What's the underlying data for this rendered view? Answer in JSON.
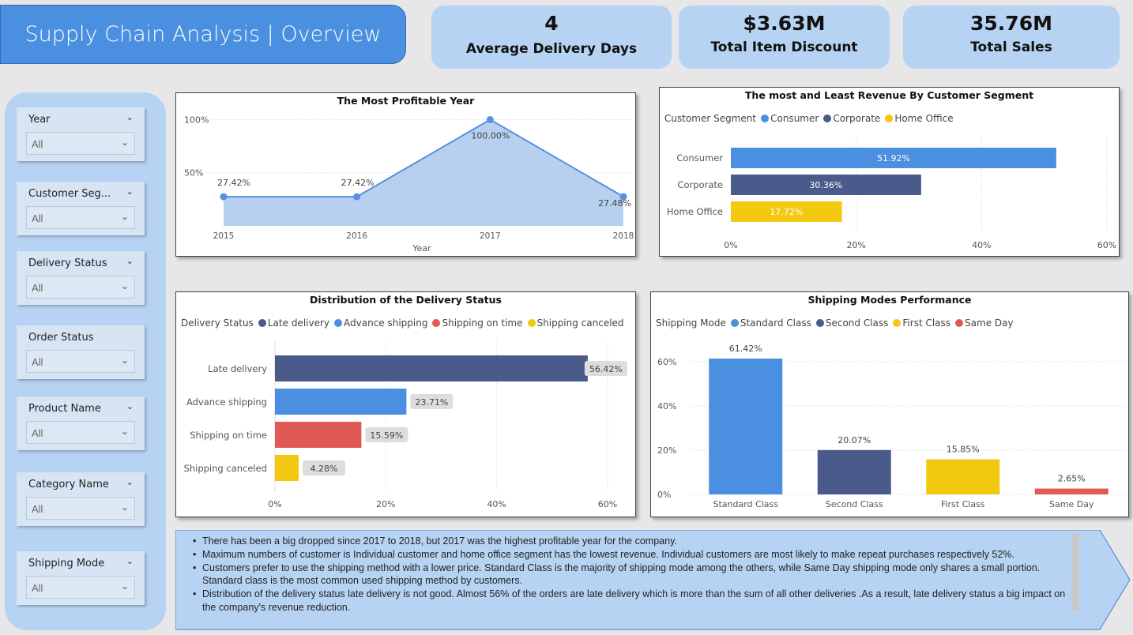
{
  "header": {
    "title": "Supply Chain Analysis | Overview"
  },
  "kpis": [
    {
      "value": "4",
      "label": "Average Delivery Days"
    },
    {
      "value": "$3.63M",
      "label": "Total Item Discount"
    },
    {
      "value": "35.76M",
      "label": "Total Sales"
    }
  ],
  "filters": [
    {
      "label": "Year",
      "value": "All"
    },
    {
      "label": "Customer Seg...",
      "value": "All"
    },
    {
      "label": "Delivery Status",
      "value": "All"
    },
    {
      "label": "Order Status",
      "value": "All"
    },
    {
      "label": "Product Name",
      "value": "All"
    },
    {
      "label": "Category Name",
      "value": "All"
    },
    {
      "label": "Shipping Mode",
      "value": "All"
    }
  ],
  "chart_data": [
    {
      "type": "area",
      "title": "The Most Profitable  Year",
      "xlabel": "Year",
      "ylabel": "",
      "x": [
        "2015",
        "2016",
        "2017",
        "2018"
      ],
      "values": [
        27.42,
        27.42,
        100.0,
        27.48
      ],
      "data_labels": [
        "27.42%",
        "27.42%",
        "100.00%",
        "27.48%"
      ],
      "yticks": [
        "50%",
        "100%"
      ],
      "ylim": [
        0,
        110
      ],
      "color": "#5b8fe0"
    },
    {
      "type": "bar",
      "orientation": "horizontal",
      "title": "The most and Least Revenue By Customer Segment",
      "legend_title": "Customer Segment",
      "categories": [
        "Consumer",
        "Corporate",
        "Home Office"
      ],
      "values": [
        51.92,
        30.36,
        17.72
      ],
      "data_labels": [
        "51.92%",
        "30.36%",
        "17.72%"
      ],
      "colors": [
        "#4a8fe0",
        "#4a5a8a",
        "#f2c811"
      ],
      "xticks": [
        "0%",
        "20%",
        "40%",
        "60%"
      ],
      "xlim": [
        0,
        60
      ]
    },
    {
      "type": "bar",
      "orientation": "horizontal",
      "title": "Distribution of the Delivery Status",
      "legend_title": "Delivery Status",
      "categories": [
        "Late delivery",
        "Advance shipping",
        "Shipping on time",
        "Shipping canceled"
      ],
      "values": [
        56.42,
        23.71,
        15.59,
        4.28
      ],
      "data_labels": [
        "56.42%",
        "23.71%",
        "15.59%",
        "4.28%"
      ],
      "colors": [
        "#4a5a8a",
        "#4a8fe0",
        "#e05a55",
        "#f2c811"
      ],
      "xticks": [
        "0%",
        "20%",
        "40%",
        "60%"
      ],
      "xlim": [
        0,
        60
      ]
    },
    {
      "type": "bar",
      "orientation": "vertical",
      "title": "Shipping Modes Performance",
      "legend_title": "Shipping Mode",
      "categories": [
        "Standard Class",
        "Second Class",
        "First Class",
        "Same Day"
      ],
      "values": [
        61.42,
        20.07,
        15.85,
        2.65
      ],
      "data_labels": [
        "61.42%",
        "20.07%",
        "15.85%",
        "2.65%"
      ],
      "colors": [
        "#4a8fe0",
        "#4a5a8a",
        "#f2c811",
        "#e05a55"
      ],
      "yticks": [
        "0%",
        "20%",
        "40%",
        "60%"
      ],
      "ylim": [
        0,
        60
      ]
    }
  ],
  "insights": [
    "There has been a big dropped since 2017 to 2018, but 2017 was the highest profitable year for the company.",
    "Maximum numbers of customer is Individual customer and home office segment has the lowest revenue. Individual customers are most likely to make repeat purchases respectively 52%.",
    "Customers prefer to use the shipping method with a lower price. Standard Class is the majority of shipping mode among the others, while Same Day shipping mode only shares a small portion.  Standard class is the most common used shipping method by customers.",
    "Distribution of the delivery status  late delivery is not good. Almost  56% of the orders are late delivery which is more than the sum of all other deliveries .As a result, late delivery status a big impact on the company's revenue reduction."
  ]
}
